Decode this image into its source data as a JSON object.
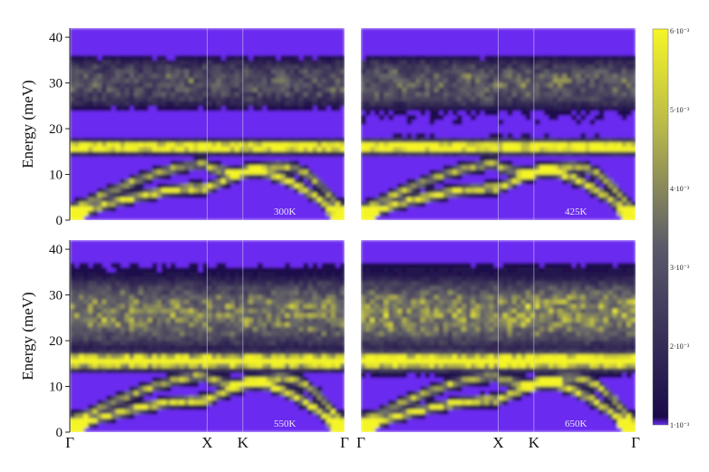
{
  "chart_data": {
    "type": "heatmap",
    "ylabel": "Energy (meV)",
    "ylim": [
      0,
      42
    ],
    "yticks": [
      "0",
      "10",
      "20",
      "30",
      "40"
    ],
    "x_path": [
      "Γ",
      "X",
      "K",
      "Γ"
    ],
    "x_path_fraction": [
      0,
      0.5,
      0.63,
      1
    ],
    "colorbar": {
      "range": [
        0.001,
        0.006
      ],
      "ticks": [
        "1·10⁻³",
        "2·10⁻³",
        "3·10⁻³",
        "4·10⁻³",
        "5·10⁻³",
        "6·10⁻³"
      ],
      "colormap": [
        "#6a2cf0",
        "#1a0a4a",
        "#6a6a6a",
        "#f5f526"
      ]
    },
    "panels": [
      {
        "label": "300K",
        "flat_band_meV": 16,
        "flat_band_width": 2.0,
        "upper_continuum_meV": [
          24,
          36
        ],
        "background_level": 0.0
      },
      {
        "label": "425K",
        "flat_band_meV": 16,
        "flat_band_width": 2.2,
        "upper_continuum_meV": [
          24,
          36
        ],
        "background_level": 0.1
      },
      {
        "label": "550K",
        "flat_band_meV": 15.5,
        "flat_band_width": 2.6,
        "upper_continuum_meV": [
          18,
          34
        ],
        "background_level": 0.35
      },
      {
        "label": "650K",
        "flat_band_meV": 15.5,
        "flat_band_width": 2.8,
        "upper_continuum_meV": [
          18,
          34
        ],
        "background_level": 0.45
      }
    ]
  }
}
